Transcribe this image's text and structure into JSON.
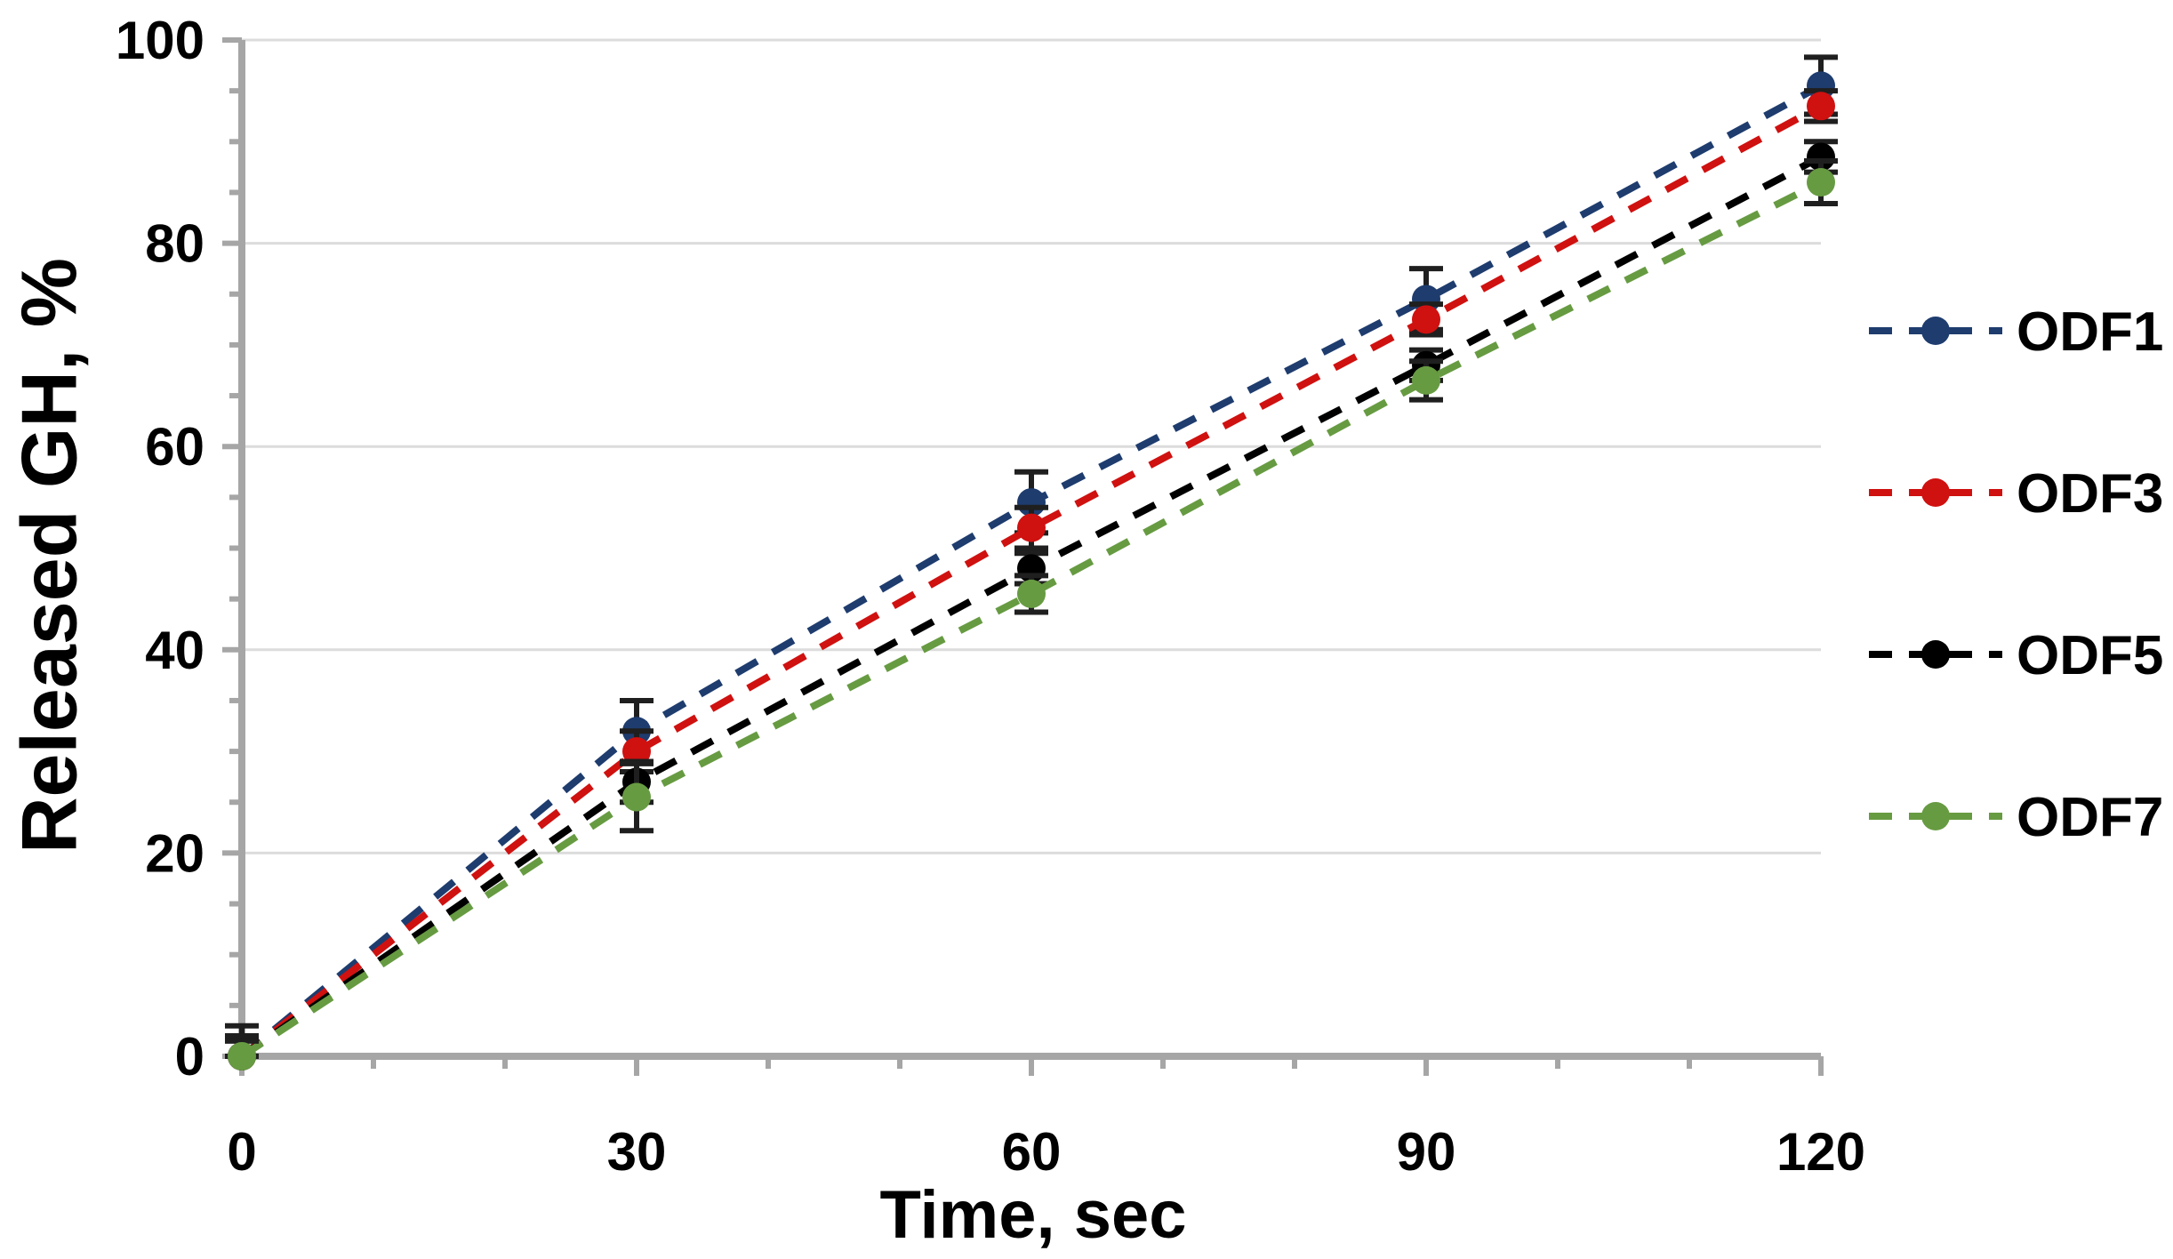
{
  "figure": {
    "background": "#ffffff",
    "text_color": "#000000",
    "axis_color": "#a6a6a6",
    "grid_color": "#dcdcdc",
    "error_bar_color": "#1f1f1f"
  },
  "chart_data": {
    "type": "line",
    "title": "",
    "xlabel": "Time, sec",
    "ylabel": "Released GH, %",
    "x": [
      0,
      30,
      60,
      90,
      120
    ],
    "xlim": [
      0,
      120
    ],
    "ylim": [
      0,
      100
    ],
    "x_major_ticks": [
      0,
      30,
      60,
      90,
      120
    ],
    "x_minor_step": 10,
    "y_major_ticks": [
      0,
      20,
      40,
      60,
      80,
      100
    ],
    "y_minor_step": 5,
    "grid": "horizontal-major-only",
    "line_style": "dashed",
    "marker": "circle",
    "error_bars": true,
    "legend_position": "right-outside",
    "series": [
      {
        "name": "ODF1",
        "color": "#1e3c6e",
        "values": [
          0,
          32,
          54.5,
          74.5,
          95.5
        ],
        "errors": [
          3,
          3,
          3,
          3,
          2.8
        ]
      },
      {
        "name": "ODF3",
        "color": "#cf1110",
        "values": [
          0,
          30,
          52,
          72.5,
          93.5
        ],
        "errors": [
          2,
          2,
          2,
          1.5,
          1.5
        ]
      },
      {
        "name": "ODF5",
        "color": "#000000",
        "values": [
          0,
          27,
          48,
          68,
          88.5
        ],
        "errors": [
          2,
          2,
          1.5,
          1.5,
          1.5
        ]
      },
      {
        "name": "ODF7",
        "color": "#679b42",
        "values": [
          0,
          25.5,
          45.5,
          66.5,
          86
        ],
        "errors": [
          1.5,
          3.3,
          1.8,
          1.9,
          2.1
        ]
      }
    ]
  }
}
